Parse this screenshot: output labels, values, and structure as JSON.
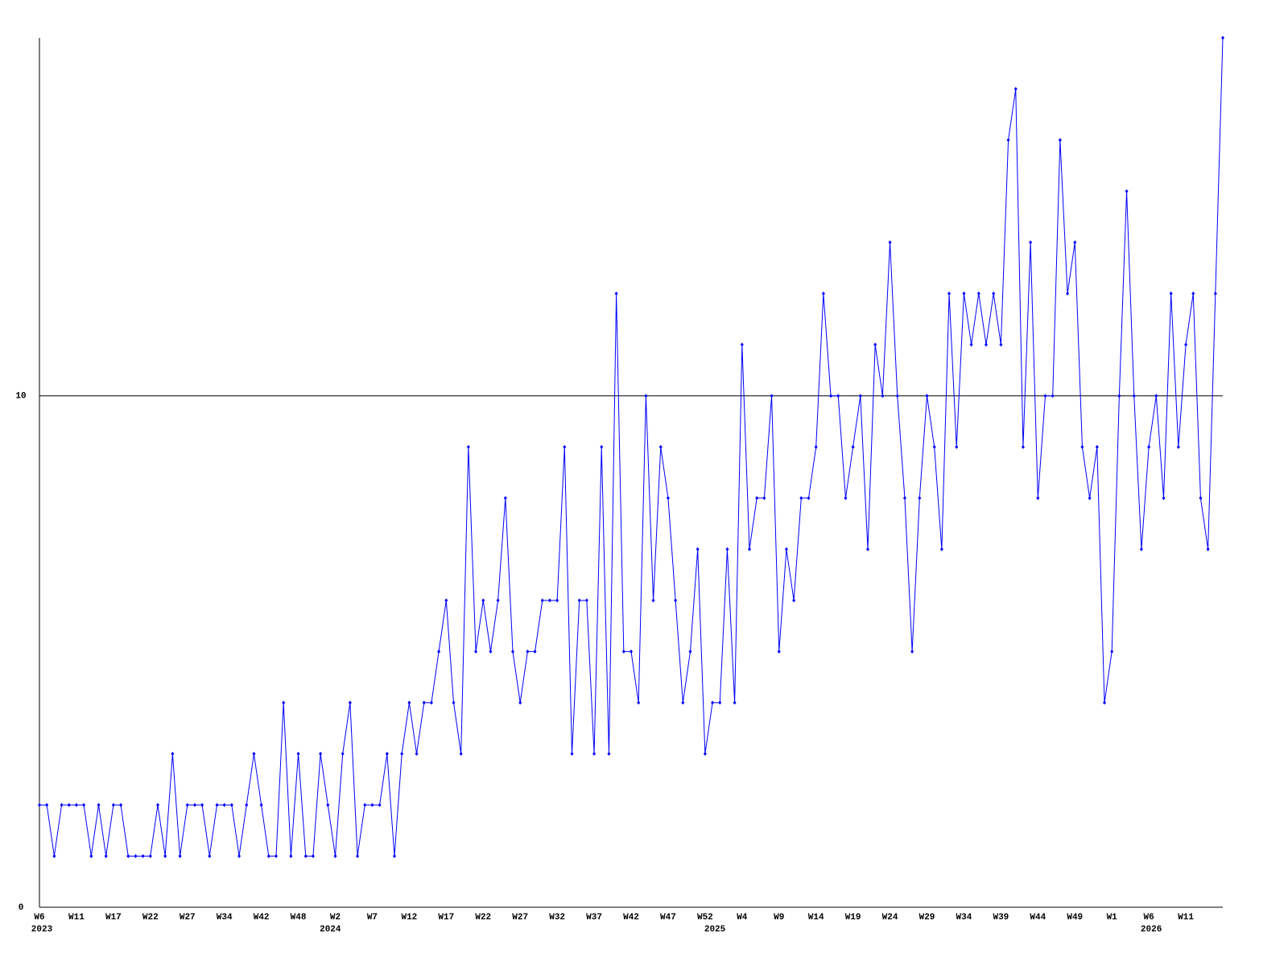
{
  "chart_data": {
    "type": "line",
    "categories": [
      "W6",
      null,
      null,
      null,
      null,
      "W11",
      null,
      null,
      null,
      null,
      "W17",
      null,
      null,
      null,
      null,
      "W22",
      null,
      null,
      null,
      null,
      "W27",
      null,
      null,
      null,
      null,
      "W34",
      null,
      null,
      null,
      null,
      "W42",
      null,
      null,
      null,
      null,
      "W48",
      null,
      null,
      null,
      null,
      "W2",
      null,
      null,
      null,
      null,
      "W7",
      null,
      null,
      null,
      null,
      "W12",
      null,
      null,
      null,
      null,
      "W17",
      null,
      null,
      null,
      null,
      "W22",
      null,
      null,
      null,
      null,
      "W27",
      null,
      null,
      null,
      null,
      "W32",
      null,
      null,
      null,
      null,
      "W37",
      null,
      null,
      null,
      null,
      "W42",
      null,
      null,
      null,
      null,
      "W47",
      null,
      null,
      null,
      null,
      "W52",
      null,
      null,
      null,
      null,
      "W4",
      null,
      null,
      null,
      null,
      "W9",
      null,
      null,
      null,
      null,
      "W14",
      null,
      null,
      null,
      null,
      "W19",
      null,
      null,
      null,
      null,
      "W24",
      null,
      null,
      null,
      null,
      "W29",
      null,
      null,
      null,
      null,
      "W34",
      null,
      null,
      null,
      null,
      "W39",
      null,
      null,
      null,
      null,
      "W44",
      null,
      null,
      null,
      null,
      "W49",
      null,
      null,
      null,
      null,
      "W1",
      null,
      null,
      null,
      null,
      "W6",
      null,
      null,
      null,
      null,
      "W11",
      null,
      null,
      null,
      null,
      null
    ],
    "x_years": [
      "2023",
      null,
      null,
      null,
      null,
      null,
      null,
      null,
      null,
      null,
      null,
      null,
      null,
      null,
      null,
      null,
      null,
      null,
      null,
      null,
      null,
      null,
      null,
      null,
      null,
      null,
      null,
      null,
      null,
      null,
      null,
      null,
      null,
      null,
      null,
      null,
      null,
      null,
      null,
      "2024",
      null,
      null,
      null,
      null,
      null,
      null,
      null,
      null,
      null,
      null,
      null,
      null,
      null,
      null,
      null,
      null,
      null,
      null,
      null,
      null,
      null,
      null,
      null,
      null,
      null,
      null,
      null,
      null,
      null,
      null,
      null,
      null,
      null,
      null,
      null,
      null,
      null,
      null,
      null,
      null,
      null,
      null,
      null,
      null,
      null,
      null,
      null,
      null,
      null,
      null,
      null,
      "2025",
      null,
      null,
      null,
      null,
      null,
      null,
      null,
      null,
      null,
      null,
      null,
      null,
      null,
      null,
      null,
      null,
      null,
      null,
      null,
      null,
      null,
      null,
      null,
      null,
      null,
      null,
      null,
      null,
      null,
      null,
      null,
      null,
      null,
      null,
      null,
      null,
      null,
      null,
      null,
      null,
      null,
      null,
      null,
      null,
      null,
      null,
      null,
      null,
      null,
      null,
      null,
      null,
      null,
      null,
      null,
      null,
      null,
      null,
      "2026",
      null,
      null,
      null,
      null,
      null,
      null,
      null,
      null,
      null,
      null,
      null,
      null,
      null,
      null,
      null
    ],
    "series": [
      {
        "color": "#0000ff",
        "values": [
          2,
          2,
          1,
          2,
          2,
          2,
          2,
          1,
          2,
          1,
          2,
          2,
          1,
          1,
          1,
          1,
          2,
          1,
          3,
          1,
          2,
          2,
          2,
          1,
          2,
          2,
          2,
          1,
          2,
          3,
          2,
          1,
          1,
          4,
          1,
          3,
          1,
          1,
          3,
          2,
          1,
          3,
          4,
          1,
          2,
          2,
          2,
          3,
          1,
          3,
          4,
          3,
          4,
          4,
          5,
          6,
          4,
          3,
          9,
          5,
          6,
          5,
          6,
          8,
          5,
          4,
          5,
          5,
          6,
          6,
          6,
          9,
          3,
          6,
          6,
          3,
          9,
          3,
          12,
          5,
          5,
          4,
          10,
          6,
          9,
          8,
          6,
          4,
          5,
          7,
          3,
          4,
          4,
          7,
          4,
          11,
          7,
          8,
          8,
          10,
          5,
          7,
          6,
          8,
          8,
          9,
          12,
          10,
          10,
          8,
          9,
          10,
          7,
          11,
          10,
          13,
          10,
          8,
          5,
          8,
          10,
          9,
          7,
          12,
          9,
          12,
          11,
          12,
          11,
          12,
          11,
          15,
          16,
          9,
          13,
          8,
          10,
          10,
          15,
          12,
          13,
          9,
          8,
          9,
          4,
          5,
          10,
          14,
          10,
          7,
          9,
          10,
          8,
          12,
          9,
          11,
          12,
          8,
          7,
          12,
          17
        ]
      }
    ],
    "ylim": [
      0,
      17
    ],
    "yticks": [
      0,
      10
    ],
    "grid": true
  }
}
